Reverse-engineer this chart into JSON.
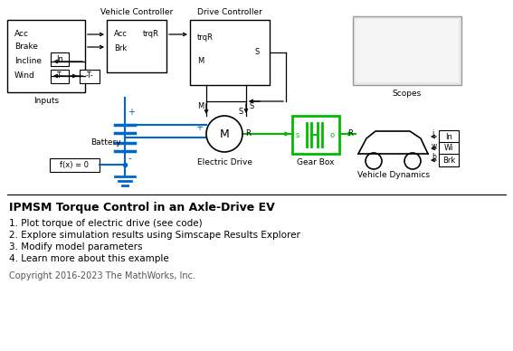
{
  "title": "IPMSM Torque Control in an Axle-Drive EV",
  "bullets": [
    "1. Plot torque of electric drive (see code)",
    "2. Explore simulation results using Simscape Results Explorer",
    "3. Modify model parameters",
    "4. Learn more about this example"
  ],
  "copyright": "Copyright 2016-2023 The MathWorks, Inc.",
  "bg_color": "#ffffff",
  "green_color": "#00bb00",
  "blue_color": "#0066cc",
  "scopes_grad_light": "#f0f0f0",
  "scopes_grad_dark": "#c0c0c0"
}
